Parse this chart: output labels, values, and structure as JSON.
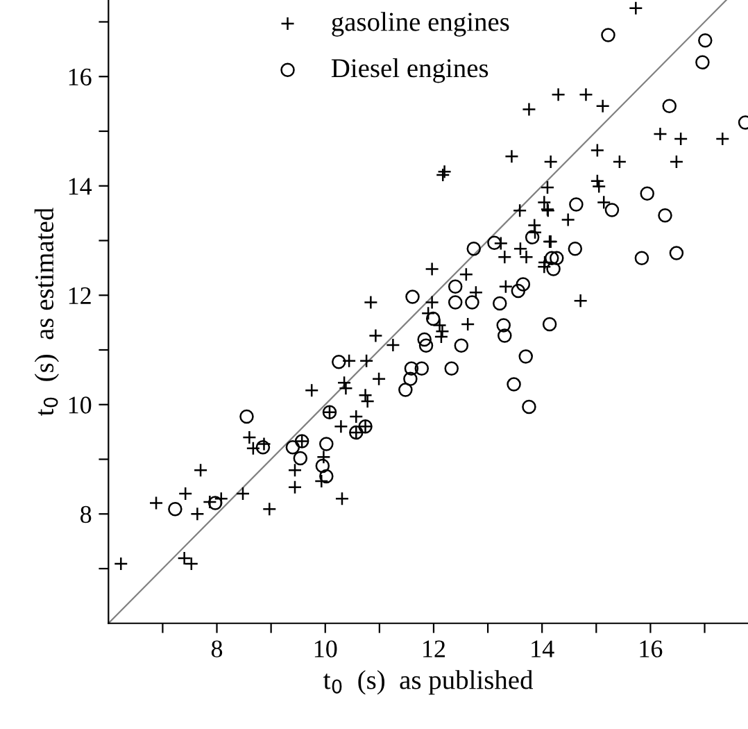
{
  "chart_data": {
    "type": "scatter",
    "xlabel": "t$_{0}$  (s)  as published",
    "ylabel": "t$_{0}$  (s)  as estimated",
    "xlim": [
      6,
      17.8
    ],
    "ylim": [
      6,
      17.4
    ],
    "xticks": [
      {
        "value": 7,
        "label": null
      },
      8,
      {
        "value": 9,
        "label": null
      },
      10,
      {
        "value": 11,
        "label": null
      },
      12,
      {
        "value": 13,
        "label": null
      },
      14,
      {
        "value": 15,
        "label": null
      },
      16,
      {
        "value": 17,
        "label": null
      }
    ],
    "yticks": [
      {
        "value": 7,
        "label": null
      },
      8,
      {
        "value": 9,
        "label": null
      },
      10,
      {
        "value": 11,
        "label": null
      },
      12,
      {
        "value": 13,
        "label": null
      },
      14,
      {
        "value": 15,
        "label": null
      },
      16,
      {
        "value": 17,
        "label": null
      }
    ],
    "grid": false,
    "legend": "top left",
    "series": [
      {
        "name": "gasoline engines",
        "color": "#000000",
        "marker": "cross",
        "x": [
          6.23,
          6.88,
          7.42,
          7.7,
          7.64,
          7.4,
          7.53,
          7.87,
          8.08,
          8.48,
          8.6,
          8.67,
          8.87,
          8.97,
          9.75,
          9.44,
          9.44,
          9.57,
          9.97,
          9.93,
          10.31,
          10.29,
          10.57,
          10.38,
          10.74,
          10.78,
          10.08,
          10.74,
          10.57,
          10.35,
          10.44,
          10.76,
          10.99,
          10.93,
          11.25,
          10.84,
          11.97,
          11.97,
          11.9,
          12.11,
          12.16,
          12.14,
          12.6,
          12.78,
          12.63,
          13.31,
          13.24,
          13.33,
          13.6,
          13.71,
          13.59,
          13.86,
          14.05,
          14.14,
          14.11,
          12.17,
          12.2,
          13.44,
          13.76,
          15.73,
          14.3,
          14.81,
          15.12,
          16.18,
          16.56,
          17.33,
          15.02,
          15.43,
          16.48,
          14.16,
          14.1,
          15.02,
          15.05,
          14.04,
          14.1,
          15.14,
          14.48,
          13.87,
          14.16,
          14.04,
          14.71
        ],
        "values": [
          7.09,
          8.2,
          8.37,
          8.8,
          8.0,
          7.19,
          7.09,
          8.22,
          8.28,
          8.37,
          9.4,
          9.2,
          9.28,
          8.09,
          10.26,
          8.8,
          8.49,
          9.33,
          9.04,
          8.6,
          8.28,
          9.6,
          9.78,
          10.3,
          10.17,
          10.06,
          9.86,
          9.6,
          9.49,
          10.4,
          10.8,
          10.8,
          10.47,
          11.26,
          11.09,
          11.87,
          12.48,
          11.87,
          11.67,
          11.45,
          11.34,
          11.24,
          12.38,
          12.05,
          11.47,
          12.7,
          12.95,
          12.16,
          12.85,
          12.7,
          13.55,
          13.28,
          12.6,
          12.98,
          13.55,
          14.2,
          14.26,
          14.54,
          15.4,
          17.25,
          15.67,
          15.67,
          15.46,
          14.95,
          14.86,
          14.86,
          14.65,
          14.44,
          14.44,
          14.44,
          13.97,
          14.09,
          13.99,
          13.7,
          13.57,
          13.7,
          13.38,
          13.15,
          12.98,
          12.52,
          11.9
        ]
      },
      {
        "name": "Diesel engines",
        "color": "#000000",
        "marker": "circle",
        "x": [
          7.23,
          7.97,
          8.55,
          8.85,
          9.4,
          9.57,
          9.54,
          10.02,
          9.95,
          10.02,
          10.08,
          10.57,
          10.74,
          10.25,
          11.59,
          11.78,
          11.57,
          11.48,
          11.83,
          11.86,
          11.99,
          11.61,
          12.4,
          12.4,
          12.71,
          12.51,
          12.33,
          12.74,
          13.12,
          13.22,
          13.29,
          13.31,
          13.7,
          13.48,
          13.76,
          13.56,
          13.65,
          13.82,
          14.18,
          14.14,
          15.22,
          17.01,
          16.96,
          16.35,
          17.75,
          15.94,
          16.27,
          14.63,
          15.29,
          14.27,
          14.21,
          14.61,
          15.84,
          16.48
        ],
        "values": [
          8.09,
          8.2,
          9.78,
          9.22,
          9.22,
          9.33,
          9.02,
          9.28,
          8.88,
          8.69,
          9.86,
          9.49,
          9.6,
          10.78,
          10.66,
          10.66,
          10.47,
          10.27,
          11.19,
          11.08,
          11.57,
          11.97,
          12.16,
          11.87,
          11.87,
          11.08,
          10.66,
          12.85,
          12.96,
          11.85,
          11.45,
          11.26,
          10.88,
          10.37,
          9.96,
          12.08,
          12.2,
          13.06,
          12.68,
          11.47,
          16.76,
          16.66,
          16.26,
          15.46,
          15.16,
          13.86,
          13.46,
          13.66,
          13.56,
          12.68,
          12.48,
          12.85,
          12.68,
          12.77
        ]
      },
      {
        "type": "line",
        "color": "#808080",
        "line_style": "solid",
        "marker": "none",
        "x": [
          6,
          17.4
        ],
        "values": [
          6,
          17.4
        ]
      }
    ]
  }
}
